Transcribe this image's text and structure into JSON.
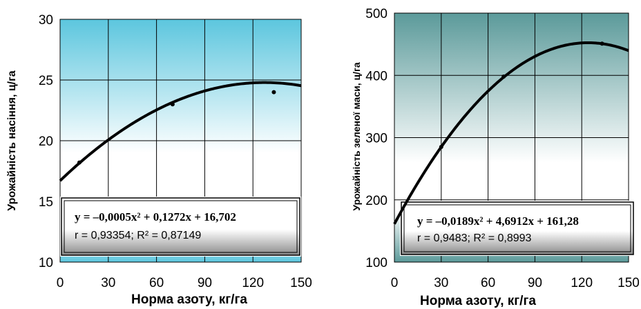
{
  "chart_data": [
    {
      "type": "scatter",
      "subtype": "quadratic-trendline",
      "title": "",
      "xlabel": "Норма азоту, кг/га",
      "ylabel": "Урожайність насіння, ц/га",
      "xlim": [
        0,
        150
      ],
      "ylim": [
        10,
        30
      ],
      "xticks": [
        "0",
        "30",
        "60",
        "90",
        "120",
        "150"
      ],
      "yticks": [
        "10",
        "15",
        "20",
        "25",
        "30"
      ],
      "grid": true,
      "background": "gradient-cyan-white",
      "series": [
        {
          "points": [
            [
              12,
              18.2
            ],
            [
              70,
              23.0
            ],
            [
              133,
              24.0
            ]
          ],
          "trend": {
            "a": -0.0005,
            "b": 0.1272,
            "c": 16.702
          }
        }
      ],
      "annotation": {
        "equation": "y = –0,0005x² + 0,1272x + 16,702",
        "stats": "r = 0,93354;  R² = 0,87149"
      }
    },
    {
      "type": "scatter",
      "subtype": "quadratic-trendline",
      "title": "",
      "xlabel": "Норма азоту, кг/га",
      "ylabel": "Урожайність зеленої маси, ц/га",
      "xlim": [
        0,
        150
      ],
      "ylim": [
        100,
        500
      ],
      "xticks": [
        "0",
        "30",
        "60",
        "90",
        "120",
        "150"
      ],
      "yticks": [
        "100",
        "200",
        "300",
        "400",
        "500"
      ],
      "grid": true,
      "background": "gradient-teal-white",
      "series": [
        {
          "points": [
            [
              30,
              285
            ],
            [
              70,
              398
            ],
            [
              133,
              451
            ]
          ],
          "trend": {
            "a": -0.0189,
            "b": 4.6912,
            "c": 161.28
          }
        }
      ],
      "annotation": {
        "equation": "y = –0,0189x² + 4,6912x + 161,28",
        "stats": "r = 0,9483;  R² = 0,8993"
      }
    }
  ],
  "colors": {
    "left_bg_top": "#5cc6de",
    "right_bg_top": "#5b9a9a",
    "curve": "#000000",
    "grid": "#000000"
  }
}
